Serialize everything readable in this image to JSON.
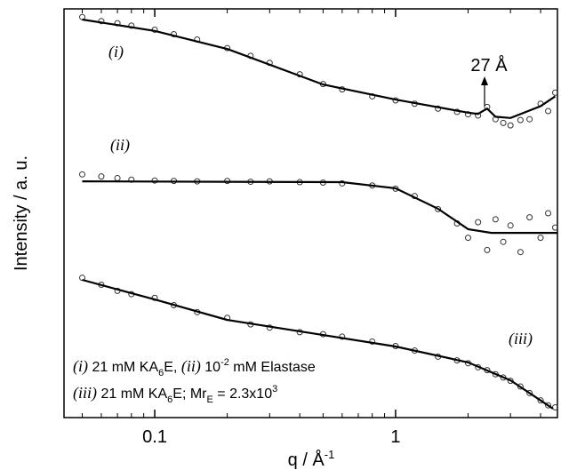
{
  "chart_data": {
    "type": "scatter",
    "x_label": [
      "q / Å",
      "-1"
    ],
    "y_label": "Intensity / a. u.",
    "log_x": true,
    "xlim": [
      0.042,
      4.7
    ],
    "xticks": [
      0.1,
      1
    ],
    "xminorticks": [
      0.05,
      0.06,
      0.07,
      0.08,
      0.09,
      0.2,
      0.3,
      0.4,
      0.5,
      0.6,
      0.7,
      0.8,
      0.9,
      2,
      3,
      4
    ],
    "ylim": [
      0,
      100
    ],
    "annotations": [
      "(i)",
      "(ii)",
      "(iii)",
      "27 Å"
    ],
    "legend_lines": [
      [
        "(i)",
        " 21 mM KA",
        "6",
        "E, ",
        "(ii)",
        " 10",
        "-2",
        " mM Elastase"
      ],
      [
        "(iii)",
        " 21 mM KA",
        "6",
        "E; Mr",
        "E",
        " = 2.3x10",
        "3"
      ]
    ],
    "series": [
      {
        "style": "points",
        "color": "#333333",
        "x": [
          0.05,
          0.06,
          0.07,
          0.08,
          0.1,
          0.12,
          0.15,
          0.2,
          0.25,
          0.3,
          0.4,
          0.5,
          0.6,
          0.8,
          1,
          1.2,
          1.5,
          1.8,
          2,
          2.2,
          2.4,
          2.6,
          2.8,
          3,
          3.3,
          3.6,
          4,
          4.3,
          4.6
        ],
        "values": [
          98.0,
          97.0,
          96.5,
          95.9,
          94.9,
          93.8,
          92.5,
          90.4,
          88.5,
          86.8,
          84.0,
          81.6,
          80.3,
          78.6,
          77.6,
          76.8,
          75.6,
          74.8,
          74.2,
          73.9,
          76.0,
          73.0,
          72.1,
          71.5,
          72.8,
          73.0,
          76.8,
          75.0,
          79.5
        ]
      },
      {
        "style": "line",
        "color": "#000000",
        "x": [
          0.05,
          0.1,
          0.2,
          0.5,
          1,
          2,
          2.2,
          2.4,
          2.6,
          3,
          4,
          4.6
        ],
        "values": [
          97.4,
          94.6,
          90.2,
          81.5,
          77.8,
          74.6,
          74.3,
          75.6,
          73.6,
          73.3,
          76.2,
          78.6
        ]
      },
      {
        "style": "points",
        "color": "#333333",
        "x": [
          0.05,
          0.06,
          0.07,
          0.08,
          0.1,
          0.12,
          0.15,
          0.2,
          0.25,
          0.3,
          0.4,
          0.5,
          0.6,
          0.8,
          1,
          1.2,
          1.5,
          1.8,
          2,
          2.2,
          2.4,
          2.6,
          2.8,
          3,
          3.3,
          3.6,
          4,
          4.3,
          4.6
        ],
        "values": [
          59.5,
          59.0,
          58.6,
          58.2,
          58.0,
          57.9,
          57.8,
          57.9,
          57.7,
          57.8,
          57.6,
          57.5,
          57.3,
          56.8,
          56.0,
          54.2,
          51.0,
          47.5,
          44.0,
          47.8,
          41.0,
          48.5,
          43.0,
          47.0,
          40.5,
          49.0,
          44.0,
          50.0,
          46.5
        ]
      },
      {
        "style": "line",
        "color": "#000000",
        "x": [
          0.05,
          0.6,
          1,
          1.5,
          2,
          2.5,
          3,
          4.7
        ],
        "values": [
          57.8,
          57.6,
          56.1,
          51.1,
          46.1,
          45.2,
          45.2,
          45.2
        ]
      },
      {
        "style": "points",
        "color": "#333333",
        "x": [
          0.05,
          0.06,
          0.07,
          0.08,
          0.1,
          0.12,
          0.15,
          0.2,
          0.25,
          0.3,
          0.4,
          0.5,
          0.6,
          0.8,
          1,
          1.2,
          1.5,
          1.8,
          2,
          2.2,
          2.4,
          2.6,
          2.8,
          3,
          3.3,
          3.6,
          4,
          4.3,
          4.6
        ],
        "values": [
          34.2,
          32.5,
          31.0,
          30.2,
          29.3,
          27.5,
          25.8,
          24.4,
          22.8,
          22.0,
          20.9,
          20.4,
          19.8,
          18.6,
          17.5,
          16.4,
          14.9,
          14.0,
          13.3,
          12.3,
          11.6,
          10.6,
          9.8,
          9.0,
          7.6,
          6.0,
          4.2,
          3.0,
          2.5
        ]
      },
      {
        "style": "line",
        "color": "#000000",
        "x": [
          0.05,
          0.1,
          0.2,
          0.5,
          1,
          2,
          3,
          4.5
        ],
        "values": [
          33.7,
          28.9,
          23.9,
          20.2,
          17.4,
          13.5,
          9.1,
          2.2
        ]
      }
    ]
  }
}
